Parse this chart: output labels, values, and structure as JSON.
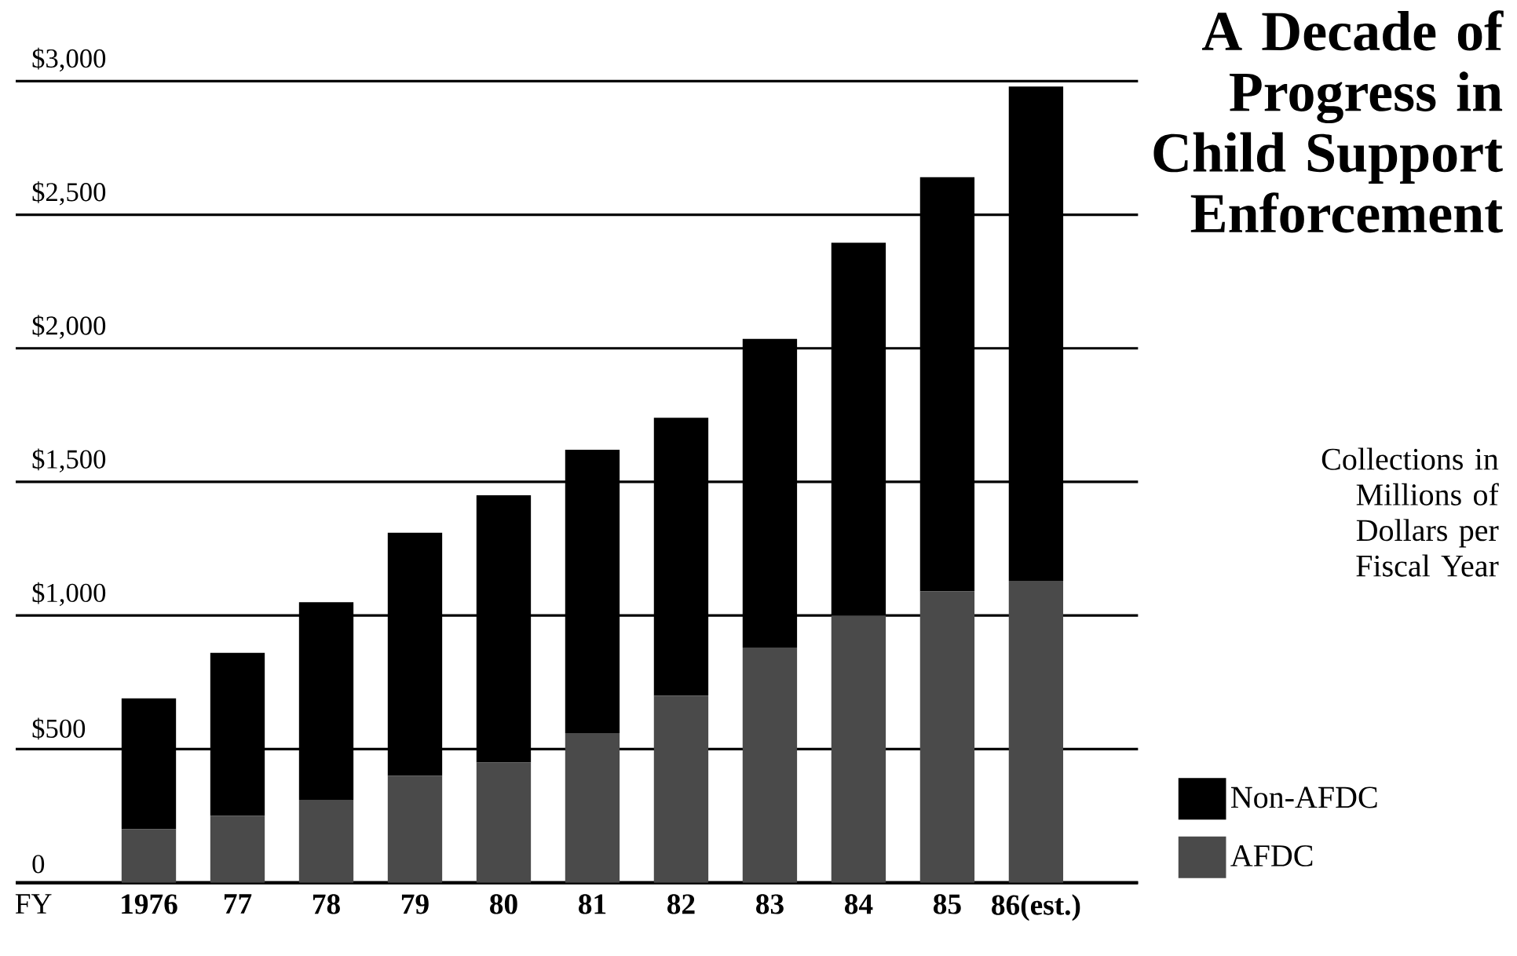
{
  "chart_data": {
    "type": "bar",
    "stacked": true,
    "title": "A Decade of Progress in Child Support Enforcement",
    "subtitle": "Collections in Millions of Dollars per Fiscal Year",
    "xlabel": "FY",
    "categories": [
      "1976",
      "77",
      "78",
      "79",
      "80",
      "81",
      "82",
      "83",
      "84",
      "85",
      "86(est.)"
    ],
    "series": [
      {
        "name": "AFDC",
        "color": "#4a4a4a",
        "values": [
          200,
          250,
          310,
          400,
          450,
          560,
          700,
          880,
          1000,
          1090,
          1130
        ]
      },
      {
        "name": "Non-AFDC",
        "color": "#000000",
        "values": [
          490,
          610,
          740,
          910,
          1000,
          1060,
          1040,
          1155,
          1395,
          1550,
          1850
        ]
      }
    ],
    "ylim": [
      0,
      3000
    ],
    "yticks": [
      {
        "value": 0,
        "label": "0"
      },
      {
        "value": 500,
        "label": "$500"
      },
      {
        "value": 1000,
        "label": "$1,000"
      },
      {
        "value": 1500,
        "label": "$1,500"
      },
      {
        "value": 2000,
        "label": "$2,000"
      },
      {
        "value": 2500,
        "label": "$2,500"
      },
      {
        "value": 3000,
        "label": "$3,000"
      }
    ],
    "grid": "y",
    "legend": "bottom right"
  }
}
